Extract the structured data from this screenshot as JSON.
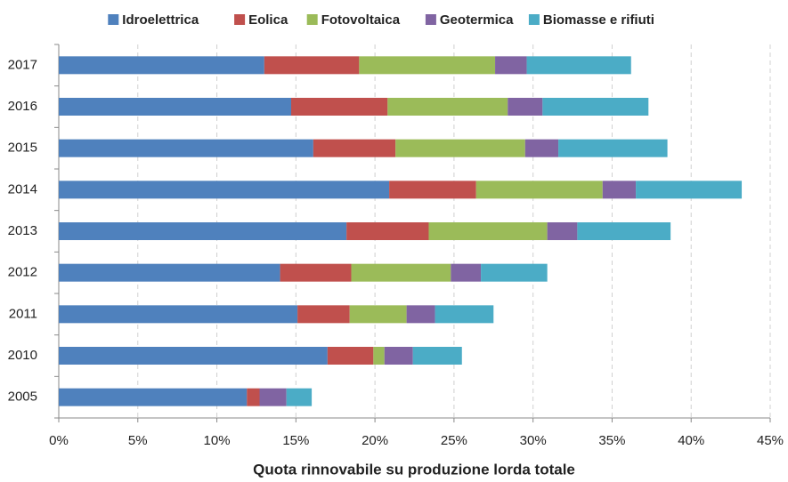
{
  "chart_data": {
    "type": "stacked-barh",
    "x_label": "Quota rinnovabile su produzione  lorda totale",
    "categories": [
      "2017",
      "2016",
      "2015",
      "2014",
      "2013",
      "2012",
      "2011",
      "2010",
      "2005"
    ],
    "series": [
      {
        "name": "Idroelettrica",
        "color": "#4f81bd",
        "values": [
          13.0,
          14.7,
          16.1,
          20.9,
          18.2,
          14.0,
          15.1,
          17.0,
          11.9
        ]
      },
      {
        "name": "Eolica",
        "color": "#c0504d",
        "values": [
          6.0,
          6.1,
          5.2,
          5.5,
          5.2,
          4.5,
          3.3,
          2.9,
          0.8
        ]
      },
      {
        "name": "Fotovoltaica",
        "color": "#9bbb59",
        "values": [
          8.6,
          7.6,
          8.2,
          8.0,
          7.5,
          6.3,
          3.6,
          0.7,
          0.0
        ]
      },
      {
        "name": "Geotermica",
        "color": "#8064a2",
        "values": [
          2.0,
          2.2,
          2.1,
          2.1,
          1.9,
          1.9,
          1.8,
          1.8,
          1.7
        ]
      },
      {
        "name": "Biomasse e rifiuti",
        "color": "#4bacc6",
        "values": [
          6.6,
          6.7,
          6.9,
          6.7,
          5.9,
          4.2,
          3.7,
          3.1,
          1.6
        ]
      }
    ],
    "xlim": [
      0,
      45
    ],
    "xticks": [
      {
        "value": 0,
        "label": "0%"
      },
      {
        "value": 5,
        "label": "5%"
      },
      {
        "value": 10,
        "label": "10%"
      },
      {
        "value": 15,
        "label": "15%"
      },
      {
        "value": 20,
        "label": "20%"
      },
      {
        "value": 25,
        "label": "25%"
      },
      {
        "value": 30,
        "label": "30%"
      },
      {
        "value": 35,
        "label": "35%"
      },
      {
        "value": 40,
        "label": "40%"
      },
      {
        "value": 45,
        "label": "45%"
      }
    ],
    "grid": true,
    "legend": "top"
  }
}
